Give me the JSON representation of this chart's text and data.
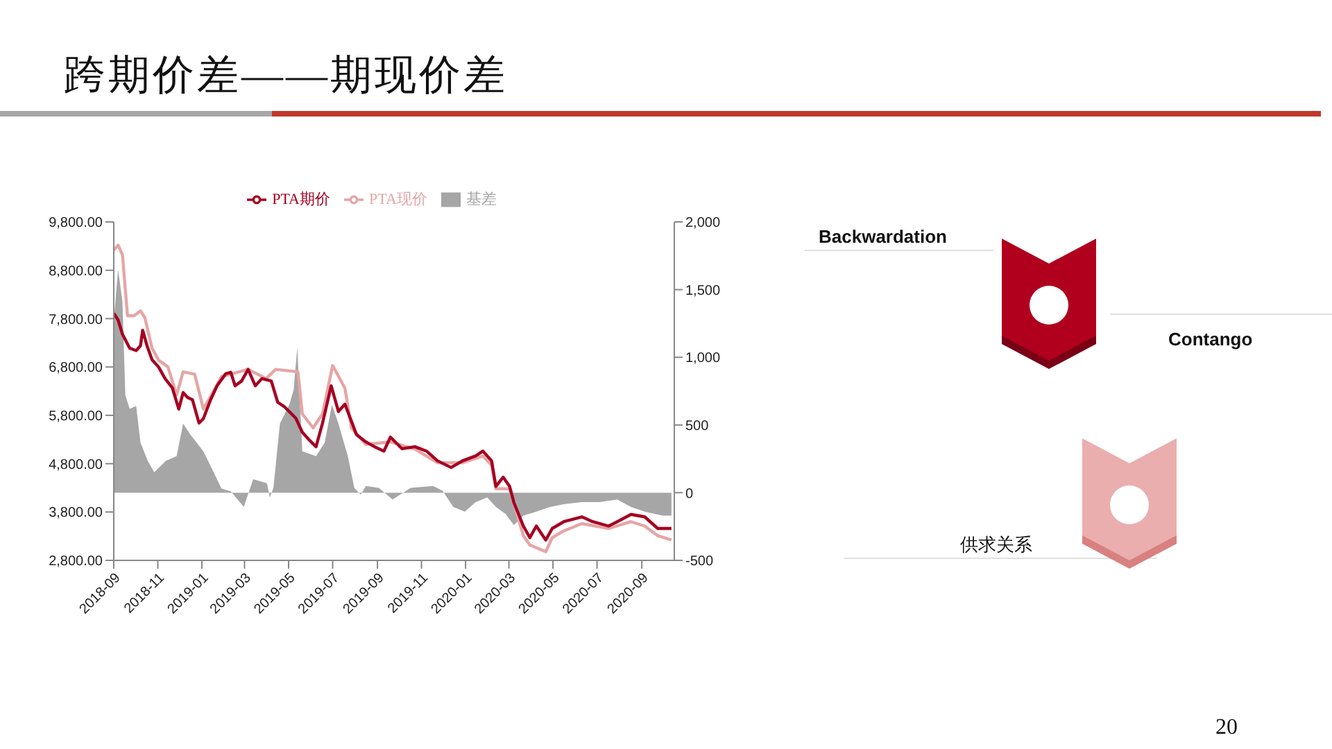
{
  "chart_data": {
    "type": "line",
    "title": "跨期价差——期现价差",
    "xlim": [
      "2018-09-01",
      "2020-10-16"
    ],
    "xticks": [
      "2018-09",
      "2018-11",
      "2019-01",
      "2019-03",
      "2019-05",
      "2019-07",
      "2019-09",
      "2019-11",
      "2020-01",
      "2020-03",
      "2020-05",
      "2020-07",
      "2020-09"
    ],
    "ylim": [
      2800,
      9800
    ],
    "yticks": [
      {
        "value": 2800,
        "label": "2,800.00"
      },
      {
        "value": 3800,
        "label": "3,800.00"
      },
      {
        "value": 4800,
        "label": "4,800.00"
      },
      {
        "value": 5800,
        "label": "5,800.00"
      },
      {
        "value": 6800,
        "label": "6,800.00"
      },
      {
        "value": 7800,
        "label": "7,800.00"
      },
      {
        "value": 8800,
        "label": "8,800.00"
      },
      {
        "value": 9800,
        "label": "9,800.00"
      }
    ],
    "y2lim": [
      -500,
      2000
    ],
    "y2ticks": [
      -500,
      0,
      500,
      {
        "value": 1000,
        "label": "1,000"
      },
      {
        "value": 1500,
        "label": "1,500"
      },
      {
        "value": 2000,
        "label": "2,000"
      }
    ],
    "legend": "top",
    "series": [
      {
        "name": "基差",
        "type": "area",
        "axis": "y2",
        "color": "#a6a6a6",
        "x": [
          "2018-09-01",
          "2018-09-07",
          "2018-09-13",
          "2018-09-17",
          "2018-09-23",
          "2018-10-02",
          "2018-10-08",
          "2018-10-18",
          "2018-10-27",
          "2018-11-12",
          "2018-11-27",
          "2018-12-06",
          "2018-12-16",
          "2019-01-03",
          "2019-01-16",
          "2019-01-28",
          "2019-02-10",
          "2019-02-28",
          "2019-03-13",
          "2019-04-01",
          "2019-04-05",
          "2019-04-10",
          "2019-04-19",
          "2019-05-02",
          "2019-05-08",
          "2019-05-13",
          "2019-05-20",
          "2019-06-08",
          "2019-06-20",
          "2019-06-30",
          "2019-07-09",
          "2019-07-22",
          "2019-07-31",
          "2019-08-09",
          "2019-08-16",
          "2019-09-03",
          "2019-09-22",
          "2019-10-17",
          "2019-11-17",
          "2019-11-30",
          "2019-12-15",
          "2019-12-31",
          "2020-01-15",
          "2020-01-31",
          "2020-02-12",
          "2020-02-25",
          "2020-03-08",
          "2020-03-21",
          "2020-04-08",
          "2020-04-27",
          "2020-05-16",
          "2020-06-10",
          "2020-07-04",
          "2020-07-29",
          "2020-08-17",
          "2020-09-05",
          "2020-09-30",
          "2020-10-12"
        ],
        "values": [
          1270,
          1650,
          1410,
          720,
          620,
          640,
          370,
          235,
          150,
          235,
          270,
          510,
          430,
          305,
          165,
          30,
          10,
          -105,
          100,
          70,
          -35,
          35,
          510,
          650,
          760,
          1070,
          305,
          270,
          370,
          650,
          510,
          270,
          35,
          -15,
          50,
          35,
          -50,
          35,
          50,
          15,
          -105,
          -140,
          -70,
          -35,
          -105,
          -155,
          -240,
          -170,
          -140,
          -105,
          -85,
          -70,
          -70,
          -50,
          -105,
          -140,
          -170,
          -170
        ]
      },
      {
        "name": "PTA现价",
        "color": "#e6a5a5",
        "x": [
          "2018-09-01",
          "2018-09-07",
          "2018-09-13",
          "2018-09-20",
          "2018-09-29",
          "2018-10-08",
          "2018-10-14",
          "2018-10-24",
          "2018-11-02",
          "2018-11-15",
          "2018-11-27",
          "2018-12-06",
          "2018-12-22",
          "2019-01-03",
          "2019-01-16",
          "2019-01-28",
          "2019-03-06",
          "2019-03-31",
          "2019-04-13",
          "2019-05-14",
          "2019-05-20",
          "2019-06-04",
          "2019-06-17",
          "2019-07-01",
          "2019-07-18",
          "2019-07-27",
          "2019-08-16",
          "2019-09-19",
          "2019-10-23",
          "2019-11-23",
          "2019-12-28",
          "2020-01-25",
          "2020-02-06",
          "2020-02-12",
          "2020-03-02",
          "2020-03-21",
          "2020-03-30",
          "2020-04-21",
          "2020-04-30",
          "2020-05-16",
          "2020-06-10",
          "2020-07-17",
          "2020-08-17",
          "2020-09-05",
          "2020-09-23",
          "2020-10-12"
        ],
        "values": [
          9220,
          9320,
          9120,
          7860,
          7860,
          7960,
          7820,
          7190,
          6940,
          6800,
          6220,
          6700,
          6650,
          5930,
          6270,
          6600,
          6750,
          6560,
          6750,
          6700,
          5830,
          5540,
          5830,
          6830,
          6360,
          5540,
          5200,
          5250,
          5100,
          4820,
          4820,
          4960,
          4770,
          4280,
          4280,
          3310,
          3120,
          2980,
          3270,
          3410,
          3560,
          3460,
          3600,
          3510,
          3310,
          3220
        ]
      },
      {
        "name": "PTA期价",
        "color": "#a50021",
        "x": [
          "2018-09-01",
          "2018-09-07",
          "2018-09-13",
          "2018-09-23",
          "2018-10-02",
          "2018-10-08",
          "2018-10-11",
          "2018-10-17",
          "2018-10-24",
          "2018-11-02",
          "2018-11-11",
          "2018-11-21",
          "2018-11-30",
          "2018-12-06",
          "2018-12-12",
          "2018-12-19",
          "2018-12-28",
          "2019-01-03",
          "2019-01-13",
          "2019-01-22",
          "2019-02-03",
          "2019-02-10",
          "2019-02-16",
          "2019-02-25",
          "2019-03-06",
          "2019-03-16",
          "2019-03-25",
          "2019-04-07",
          "2019-04-16",
          "2019-04-25",
          "2019-05-11",
          "2019-05-20",
          "2019-05-29",
          "2019-06-08",
          "2019-06-17",
          "2019-06-29",
          "2019-07-09",
          "2019-07-18",
          "2019-08-03",
          "2019-08-16",
          "2019-08-28",
          "2019-09-10",
          "2019-09-19",
          "2019-10-05",
          "2019-10-23",
          "2019-11-08",
          "2019-11-23",
          "2019-12-12",
          "2019-12-28",
          "2020-01-15",
          "2020-01-25",
          "2020-02-06",
          "2020-02-12",
          "2020-02-22",
          "2020-03-02",
          "2020-03-08",
          "2020-03-21",
          "2020-03-30",
          "2020-04-08",
          "2020-04-21",
          "2020-04-30",
          "2020-05-16",
          "2020-06-10",
          "2020-06-25",
          "2020-07-17",
          "2020-07-29",
          "2020-08-17",
          "2020-09-05",
          "2020-09-23",
          "2020-10-12"
        ],
        "values": [
          7910,
          7770,
          7480,
          7190,
          7140,
          7240,
          7560,
          7240,
          6950,
          6800,
          6560,
          6370,
          5930,
          6270,
          6170,
          6120,
          5640,
          5730,
          6120,
          6410,
          6660,
          6690,
          6410,
          6510,
          6750,
          6410,
          6560,
          6510,
          6070,
          5980,
          5740,
          5450,
          5300,
          5150,
          5640,
          6410,
          5880,
          6030,
          5400,
          5250,
          5150,
          5060,
          5350,
          5110,
          5150,
          5060,
          4860,
          4720,
          4860,
          4960,
          5060,
          4860,
          4330,
          4520,
          4330,
          3990,
          3510,
          3270,
          3510,
          3220,
          3460,
          3600,
          3700,
          3600,
          3510,
          3600,
          3750,
          3700,
          3460,
          3460
        ]
      }
    ],
    "annotations": [
      "Backwardation",
      "Contango",
      "供求关系",
      "20"
    ]
  }
}
